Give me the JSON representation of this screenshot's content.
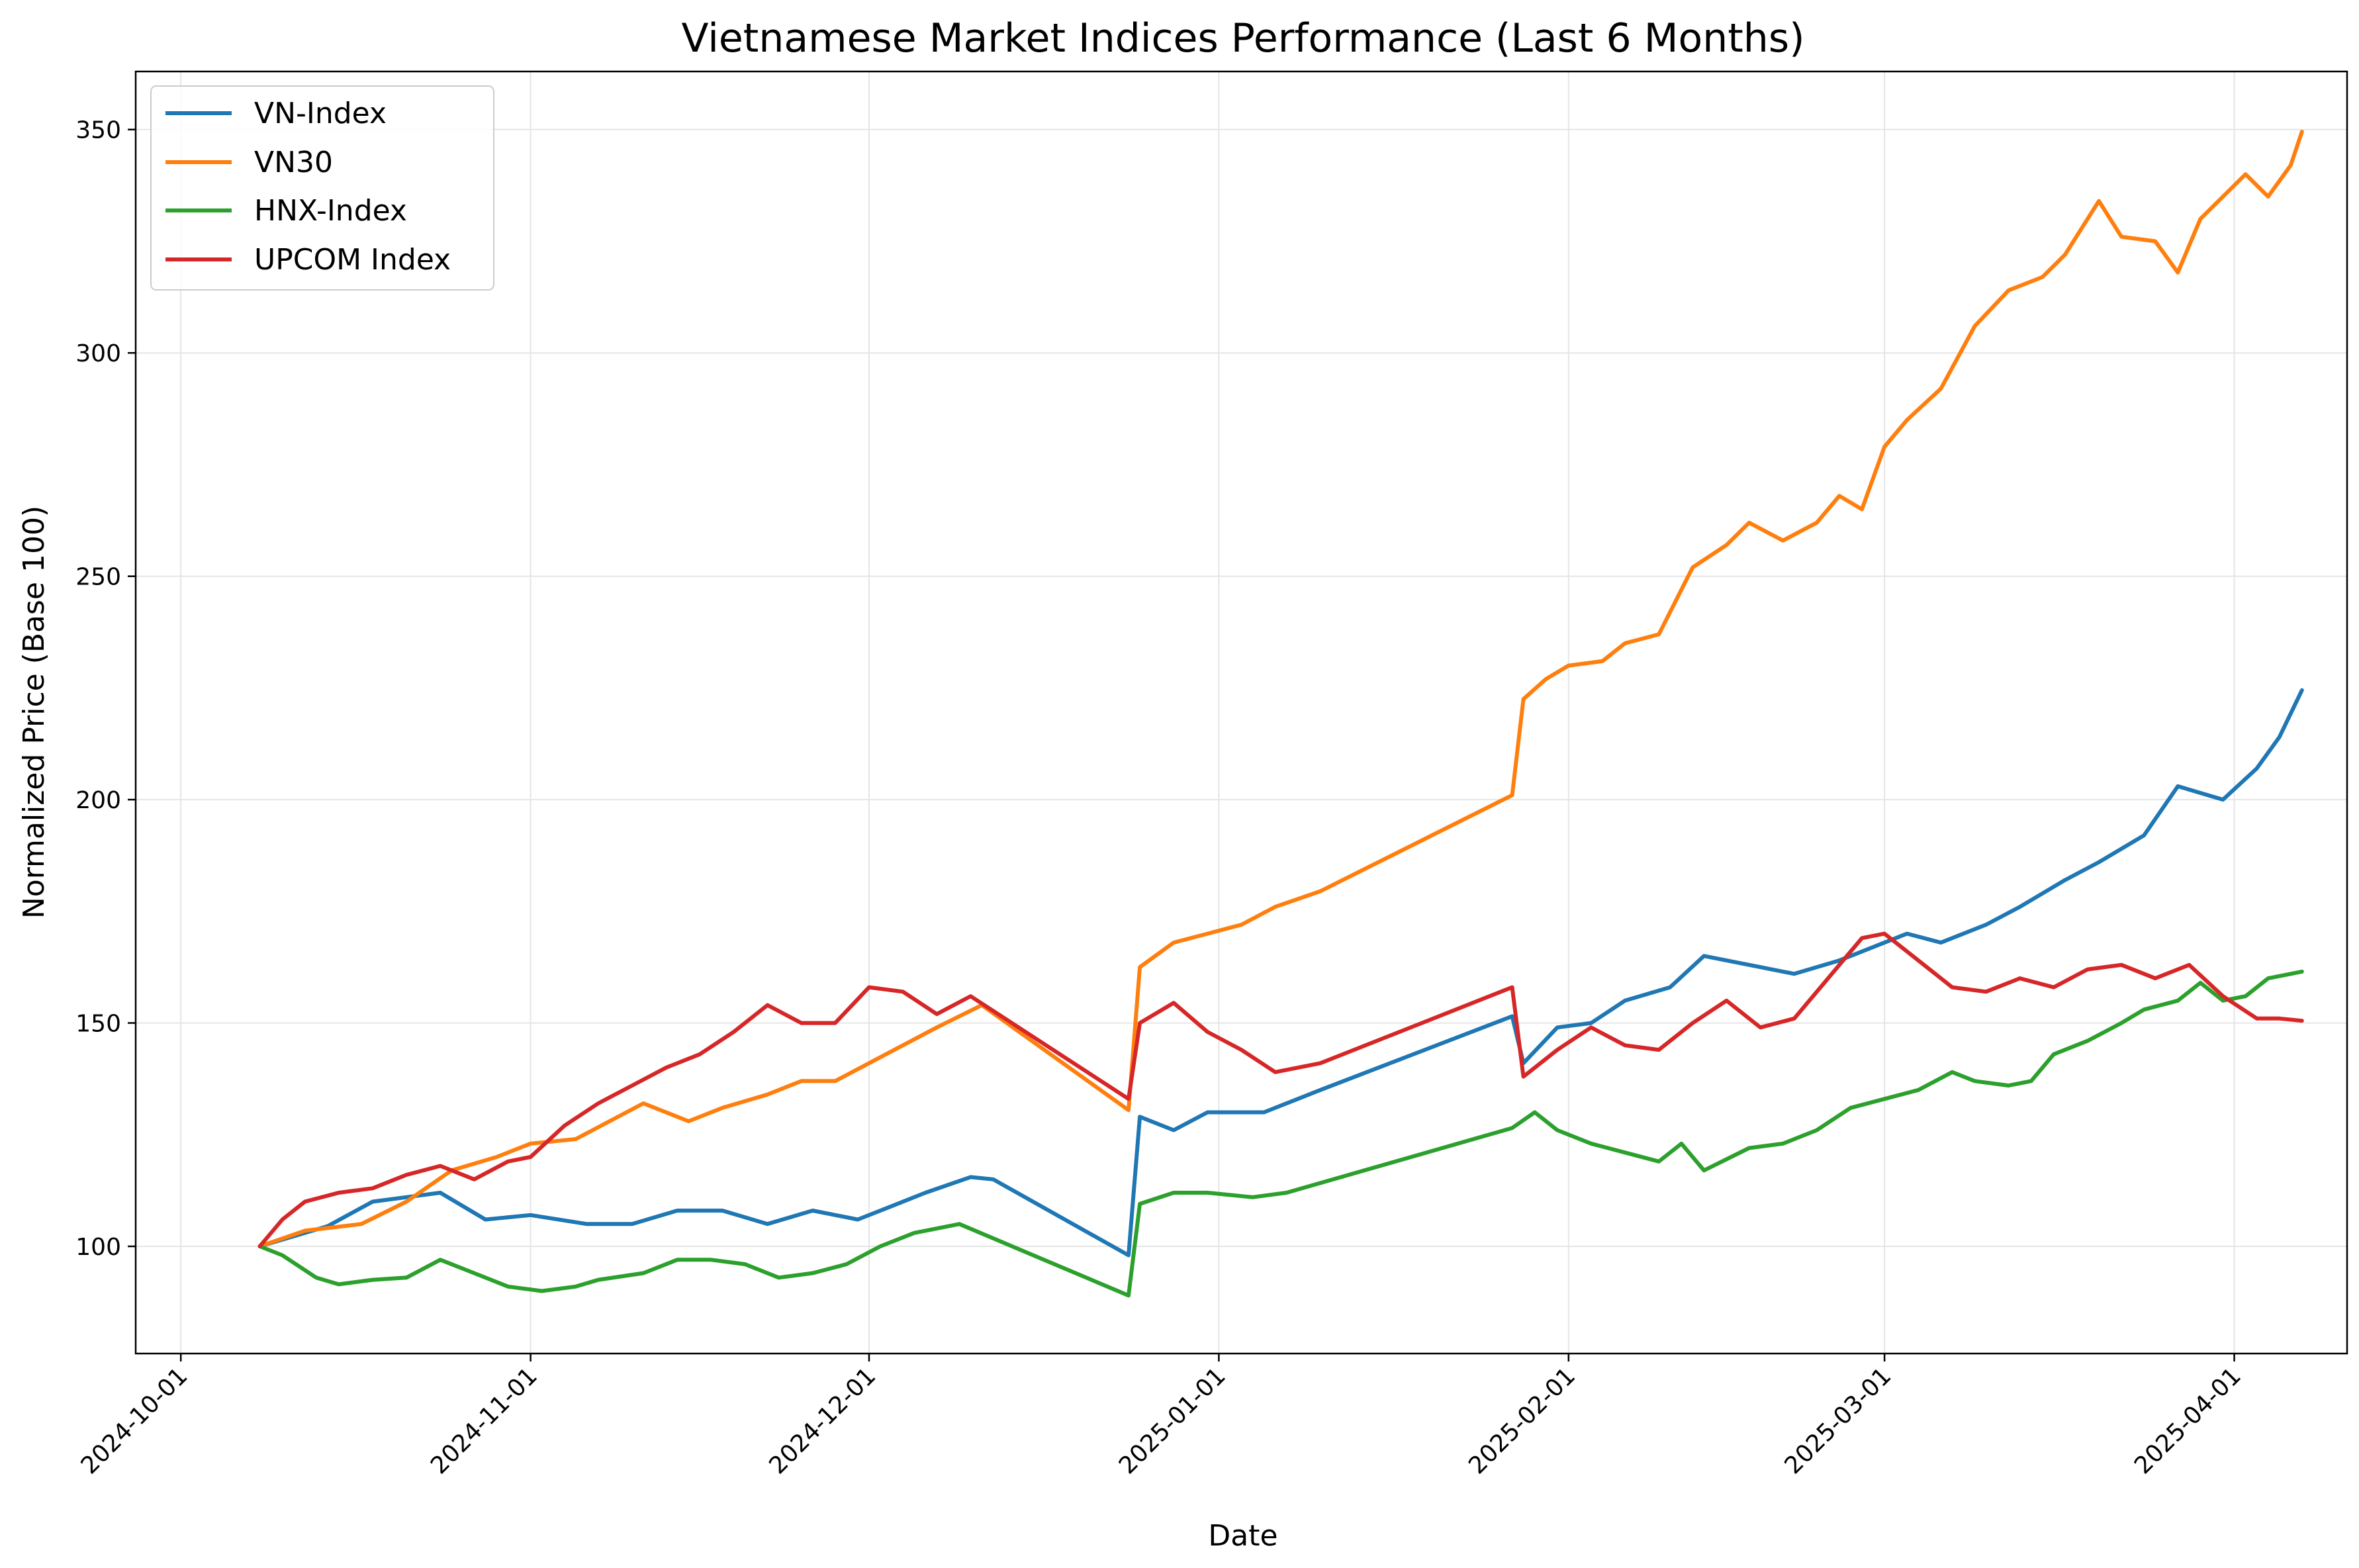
{
  "chart_data": {
    "type": "line",
    "title": "Vietnamese Market Indices Performance (Last 6 Months)",
    "xlabel": "Date",
    "ylabel": "Normalized Price (Base 100)",
    "xlim": [
      "2024-09-27",
      "2025-04-11"
    ],
    "ylim": [
      76,
      363
    ],
    "x_ticks": [
      "2024-10-01",
      "2024-11-01",
      "2024-12-01",
      "2025-01-01",
      "2025-02-01",
      "2025-03-01",
      "2025-04-01"
    ],
    "y_ticks": [
      100,
      150,
      200,
      250,
      300,
      350
    ],
    "grid": true,
    "legend": "top-left",
    "series": [
      {
        "name": "VN-Index",
        "color": "#1f77b4",
        "points": [
          [
            "2024-10-08",
            100
          ],
          [
            "2024-10-14",
            104.5
          ],
          [
            "2024-10-18",
            110
          ],
          [
            "2024-10-24",
            112
          ],
          [
            "2024-10-28",
            106
          ],
          [
            "2024-11-01",
            107
          ],
          [
            "2024-11-06",
            105
          ],
          [
            "2024-11-10",
            105
          ],
          [
            "2024-11-14",
            108
          ],
          [
            "2024-11-18",
            108
          ],
          [
            "2024-11-22",
            105
          ],
          [
            "2024-11-26",
            108
          ],
          [
            "2024-11-30",
            106
          ],
          [
            "2024-12-03",
            109
          ],
          [
            "2024-12-06",
            112
          ],
          [
            "2024-12-10",
            115.5
          ],
          [
            "2024-12-12",
            115
          ],
          [
            "2024-12-24",
            98
          ],
          [
            "2024-12-25",
            129
          ],
          [
            "2024-12-28",
            126
          ],
          [
            "2024-12-31",
            130
          ],
          [
            "2025-01-05",
            130
          ],
          [
            "2025-01-08",
            133
          ],
          [
            "2025-01-10",
            135
          ],
          [
            "2025-01-27",
            151.5
          ],
          [
            "2025-01-28",
            141
          ],
          [
            "2025-01-31",
            149
          ],
          [
            "2025-02-03",
            150
          ],
          [
            "2025-02-06",
            155
          ],
          [
            "2025-02-10",
            158
          ],
          [
            "2025-02-13",
            165
          ],
          [
            "2025-02-17",
            163
          ],
          [
            "2025-02-21",
            161
          ],
          [
            "2025-02-25",
            164
          ],
          [
            "2025-02-28",
            167
          ],
          [
            "2025-03-03",
            170
          ],
          [
            "2025-03-06",
            168
          ],
          [
            "2025-03-10",
            172
          ],
          [
            "2025-03-13",
            176
          ],
          [
            "2025-03-17",
            182
          ],
          [
            "2025-03-20",
            186
          ],
          [
            "2025-03-24",
            192
          ],
          [
            "2025-03-27",
            203
          ],
          [
            "2025-03-31",
            200
          ],
          [
            "2025-04-03",
            207
          ],
          [
            "2025-04-05",
            214
          ],
          [
            "2025-04-07",
            224.5
          ]
        ]
      },
      {
        "name": "VN30",
        "color": "#ff7f0e",
        "points": [
          [
            "2024-10-08",
            100
          ],
          [
            "2024-10-12",
            103.5
          ],
          [
            "2024-10-17",
            105
          ],
          [
            "2024-10-21",
            110
          ],
          [
            "2024-10-25",
            117
          ],
          [
            "2024-10-29",
            120
          ],
          [
            "2024-11-01",
            123
          ],
          [
            "2024-11-05",
            124
          ],
          [
            "2024-11-08",
            128
          ],
          [
            "2024-11-11",
            132
          ],
          [
            "2024-11-15",
            128
          ],
          [
            "2024-11-18",
            131
          ],
          [
            "2024-11-22",
            134
          ],
          [
            "2024-11-25",
            137
          ],
          [
            "2024-11-28",
            137
          ],
          [
            "2024-12-01",
            141
          ],
          [
            "2024-12-04",
            145
          ],
          [
            "2024-12-07",
            149
          ],
          [
            "2024-12-11",
            154
          ],
          [
            "2024-12-24",
            130.5
          ],
          [
            "2024-12-25",
            162.5
          ],
          [
            "2024-12-28",
            168
          ],
          [
            "2024-12-31",
            170
          ],
          [
            "2025-01-03",
            172
          ],
          [
            "2025-01-06",
            176
          ],
          [
            "2025-01-10",
            179.5
          ],
          [
            "2025-01-27",
            201
          ],
          [
            "2025-01-28",
            222.5
          ],
          [
            "2025-01-30",
            227
          ],
          [
            "2025-02-01",
            230
          ],
          [
            "2025-02-04",
            231
          ],
          [
            "2025-02-06",
            235
          ],
          [
            "2025-02-09",
            237
          ],
          [
            "2025-02-12",
            252
          ],
          [
            "2025-02-15",
            257
          ],
          [
            "2025-02-17",
            262
          ],
          [
            "2025-02-20",
            258
          ],
          [
            "2025-02-23",
            262
          ],
          [
            "2025-02-25",
            268
          ],
          [
            "2025-02-27",
            265
          ],
          [
            "2025-03-01",
            279
          ],
          [
            "2025-03-03",
            285
          ],
          [
            "2025-03-06",
            292
          ],
          [
            "2025-03-09",
            306
          ],
          [
            "2025-03-12",
            314
          ],
          [
            "2025-03-15",
            317
          ],
          [
            "2025-03-17",
            322
          ],
          [
            "2025-03-20",
            334
          ],
          [
            "2025-03-22",
            326
          ],
          [
            "2025-03-25",
            325
          ],
          [
            "2025-03-27",
            318
          ],
          [
            "2025-03-29",
            330
          ],
          [
            "2025-03-31",
            335
          ],
          [
            "2025-04-02",
            340
          ],
          [
            "2025-04-04",
            335
          ],
          [
            "2025-04-06",
            342
          ],
          [
            "2025-04-07",
            349.5
          ]
        ]
      },
      {
        "name": "HNX-Index",
        "color": "#2ca02c",
        "points": [
          [
            "2024-10-08",
            100
          ],
          [
            "2024-10-10",
            98
          ],
          [
            "2024-10-13",
            93
          ],
          [
            "2024-10-15",
            91.5
          ],
          [
            "2024-10-18",
            92.5
          ],
          [
            "2024-10-21",
            93
          ],
          [
            "2024-10-24",
            97
          ],
          [
            "2024-10-27",
            94
          ],
          [
            "2024-10-30",
            91
          ],
          [
            "2024-11-02",
            90
          ],
          [
            "2024-11-05",
            91
          ],
          [
            "2024-11-07",
            92.5
          ],
          [
            "2024-11-11",
            94
          ],
          [
            "2024-11-14",
            97
          ],
          [
            "2024-11-17",
            97
          ],
          [
            "2024-11-20",
            96
          ],
          [
            "2024-11-23",
            93
          ],
          [
            "2024-11-26",
            94
          ],
          [
            "2024-11-29",
            96
          ],
          [
            "2024-12-02",
            100
          ],
          [
            "2024-12-05",
            103
          ],
          [
            "2024-12-09",
            105
          ],
          [
            "2024-12-24",
            89
          ],
          [
            "2024-12-25",
            109.5
          ],
          [
            "2024-12-28",
            112
          ],
          [
            "2024-12-31",
            112
          ],
          [
            "2025-01-04",
            111
          ],
          [
            "2025-01-07",
            112
          ],
          [
            "2025-01-27",
            126.5
          ],
          [
            "2025-01-29",
            130
          ],
          [
            "2025-01-31",
            126
          ],
          [
            "2025-02-03",
            123
          ],
          [
            "2025-02-06",
            121
          ],
          [
            "2025-02-09",
            119
          ],
          [
            "2025-02-11",
            123
          ],
          [
            "2025-02-13",
            117
          ],
          [
            "2025-02-17",
            122
          ],
          [
            "2025-02-20",
            123
          ],
          [
            "2025-02-23",
            126
          ],
          [
            "2025-02-26",
            131
          ],
          [
            "2025-03-01",
            133
          ],
          [
            "2025-03-04",
            135
          ],
          [
            "2025-03-07",
            139
          ],
          [
            "2025-03-09",
            137
          ],
          [
            "2025-03-12",
            136
          ],
          [
            "2025-03-14",
            137
          ],
          [
            "2025-03-16",
            143
          ],
          [
            "2025-03-19",
            146
          ],
          [
            "2025-03-22",
            150
          ],
          [
            "2025-03-24",
            153
          ],
          [
            "2025-03-27",
            155
          ],
          [
            "2025-03-29",
            159
          ],
          [
            "2025-03-31",
            155
          ],
          [
            "2025-04-02",
            156
          ],
          [
            "2025-04-04",
            160
          ],
          [
            "2025-04-07",
            161.5
          ]
        ]
      },
      {
        "name": "UPCOM Index",
        "color": "#d62728",
        "points": [
          [
            "2024-10-08",
            100
          ],
          [
            "2024-10-10",
            106
          ],
          [
            "2024-10-12",
            110
          ],
          [
            "2024-10-15",
            112
          ],
          [
            "2024-10-18",
            113
          ],
          [
            "2024-10-21",
            116
          ],
          [
            "2024-10-24",
            118
          ],
          [
            "2024-10-27",
            115
          ],
          [
            "2024-10-30",
            119
          ],
          [
            "2024-11-01",
            120
          ],
          [
            "2024-11-04",
            127
          ],
          [
            "2024-11-07",
            132
          ],
          [
            "2024-11-10",
            136
          ],
          [
            "2024-11-13",
            140
          ],
          [
            "2024-11-16",
            143
          ],
          [
            "2024-11-19",
            148
          ],
          [
            "2024-11-22",
            154
          ],
          [
            "2024-11-25",
            150
          ],
          [
            "2024-11-28",
            150
          ],
          [
            "2024-12-01",
            158
          ],
          [
            "2024-12-04",
            157
          ],
          [
            "2024-12-07",
            152
          ],
          [
            "2024-12-10",
            156
          ],
          [
            "2024-12-24",
            133
          ],
          [
            "2024-12-25",
            150
          ],
          [
            "2024-12-28",
            154.5
          ],
          [
            "2024-12-31",
            148
          ],
          [
            "2025-01-03",
            144
          ],
          [
            "2025-01-06",
            139
          ],
          [
            "2025-01-10",
            141
          ],
          [
            "2025-01-27",
            158
          ],
          [
            "2025-01-28",
            138
          ],
          [
            "2025-01-31",
            144
          ],
          [
            "2025-02-03",
            149
          ],
          [
            "2025-02-06",
            145
          ],
          [
            "2025-02-09",
            144
          ],
          [
            "2025-02-12",
            150
          ],
          [
            "2025-02-15",
            155
          ],
          [
            "2025-02-18",
            149
          ],
          [
            "2025-02-21",
            151
          ],
          [
            "2025-02-24",
            160
          ],
          [
            "2025-02-27",
            169
          ],
          [
            "2025-03-01",
            170
          ],
          [
            "2025-03-04",
            164
          ],
          [
            "2025-03-07",
            158
          ],
          [
            "2025-03-10",
            157
          ],
          [
            "2025-03-13",
            160
          ],
          [
            "2025-03-16",
            158
          ],
          [
            "2025-03-19",
            162
          ],
          [
            "2025-03-22",
            163
          ],
          [
            "2025-03-25",
            160
          ],
          [
            "2025-03-28",
            163
          ],
          [
            "2025-03-31",
            156
          ],
          [
            "2025-04-03",
            151
          ],
          [
            "2025-04-05",
            151
          ],
          [
            "2025-04-07",
            150.5
          ]
        ]
      }
    ]
  }
}
